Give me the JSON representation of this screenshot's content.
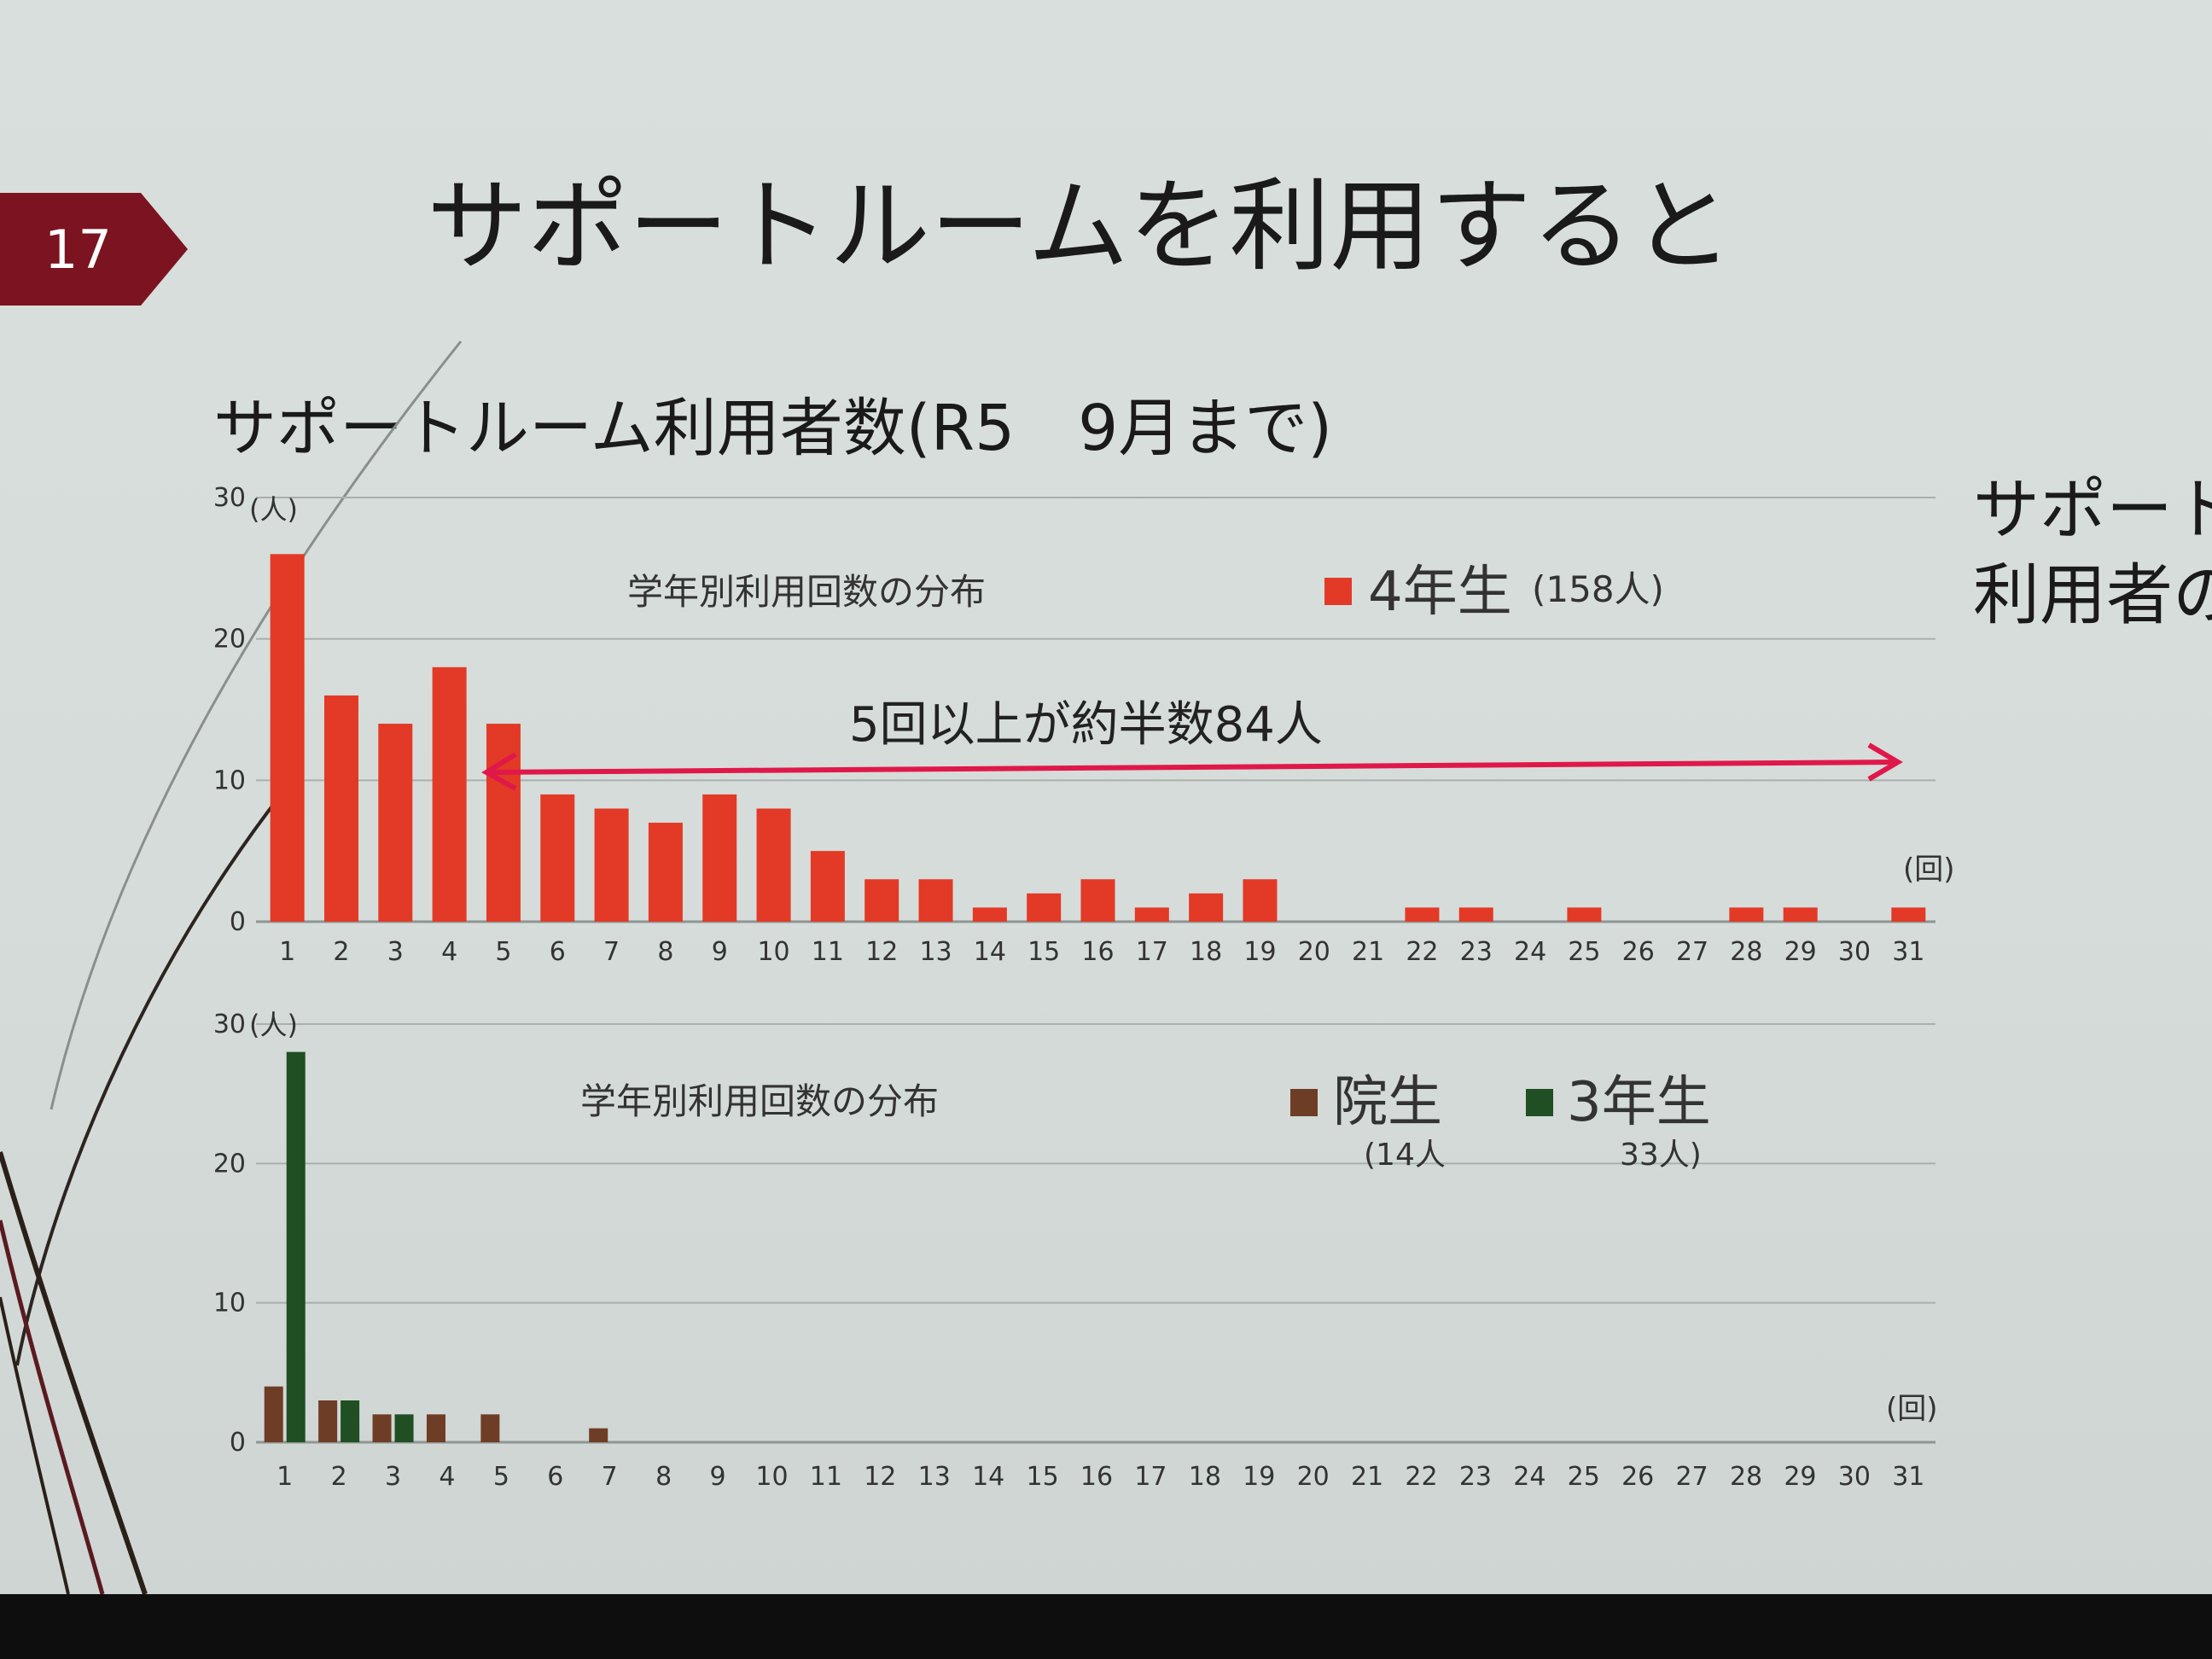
{
  "slide": {
    "number": "17",
    "title": "サポートルームを利用すると",
    "subtitle": "サポートルーム利用者数(R5　9月まで)",
    "side_text_lines": [
      "サポート",
      "利用者の"
    ],
    "badge_color": "#7b1420"
  },
  "colors": {
    "grade4": "#e23a26",
    "grad_student": "#6e3d25",
    "grade3": "#1f4f22",
    "arrow": "#e0184a"
  },
  "chart_data": [
    {
      "type": "bar",
      "title": "学年別利用回数の分布",
      "y_unit_label": "(人)",
      "x_unit_label": "(回)",
      "ylim": [
        0,
        30
      ],
      "y_ticks": [
        "0",
        "10",
        "20",
        "30"
      ],
      "grid": true,
      "categories": [
        "1",
        "2",
        "3",
        "4",
        "5",
        "6",
        "7",
        "8",
        "9",
        "10",
        "11",
        "12",
        "13",
        "14",
        "15",
        "16",
        "17",
        "18",
        "19",
        "20",
        "21",
        "22",
        "23",
        "24",
        "25",
        "26",
        "27",
        "28",
        "29",
        "30",
        "31"
      ],
      "series": [
        {
          "name": "4年生",
          "count_label": "(158人)",
          "values": [
            26,
            16,
            14,
            18,
            14,
            9,
            8,
            7,
            9,
            8,
            5,
            3,
            3,
            1,
            2,
            3,
            1,
            2,
            3,
            0,
            0,
            1,
            1,
            0,
            1,
            0,
            0,
            1,
            1,
            0,
            1
          ]
        }
      ],
      "annotation": "5回以上が約半数84人",
      "annotation_range": [
        "5",
        "31"
      ]
    },
    {
      "type": "bar",
      "title": "学年別利用回数の分布",
      "y_unit_label": "(人)",
      "x_unit_label": "(回)",
      "ylim": [
        0,
        30
      ],
      "y_ticks": [
        "0",
        "10",
        "20",
        "30"
      ],
      "grid": true,
      "categories": [
        "1",
        "2",
        "3",
        "4",
        "5",
        "6",
        "7",
        "8",
        "9",
        "10",
        "11",
        "12",
        "13",
        "14",
        "15",
        "16",
        "17",
        "18",
        "19",
        "20",
        "21",
        "22",
        "23",
        "24",
        "25",
        "26",
        "27",
        "28",
        "29",
        "30",
        "31"
      ],
      "series": [
        {
          "name": "院生",
          "count_label": "(14人",
          "values": [
            4,
            3,
            2,
            2,
            2,
            0,
            1,
            0,
            0,
            0,
            0,
            0,
            0,
            0,
            0,
            0,
            0,
            0,
            0,
            0,
            0,
            0,
            0,
            0,
            0,
            0,
            0,
            0,
            0,
            0,
            0
          ]
        },
        {
          "name": "3年生",
          "count_label": "33人)",
          "values": [
            28,
            3,
            2,
            0,
            0,
            0,
            0,
            0,
            0,
            0,
            0,
            0,
            0,
            0,
            0,
            0,
            0,
            0,
            0,
            0,
            0,
            0,
            0,
            0,
            0,
            0,
            0,
            0,
            0,
            0,
            0
          ]
        }
      ]
    }
  ]
}
